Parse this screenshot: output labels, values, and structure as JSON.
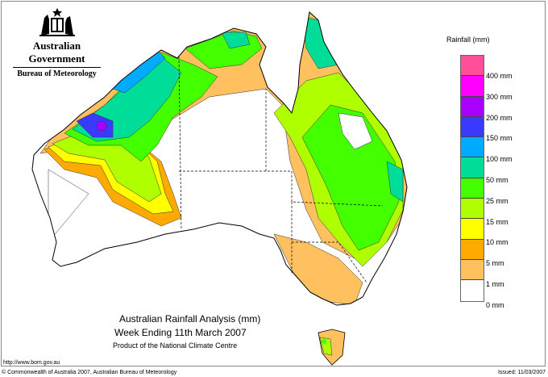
{
  "header": {
    "government": "Australian Government",
    "agency": "Bureau of Meteorology"
  },
  "map": {
    "title": "Australian Rainfall Analysis (mm)",
    "period": "Week Ending 11th March 2007",
    "product": "Product of the National Climate Centre"
  },
  "legend": {
    "title": "Rainfall (mm)",
    "colors": [
      "#ff4f9a",
      "#ff00ff",
      "#aa00ff",
      "#3a3aff",
      "#00aaff",
      "#00dd99",
      "#44ff00",
      "#b0ff00",
      "#ffff00",
      "#ffaa00",
      "#ffc060",
      "#ffffff"
    ],
    "labels": [
      "400 mm",
      "300 mm",
      "200 mm",
      "150 mm",
      "100 mm",
      "50 mm",
      "25 mm",
      "15 mm",
      "10 mm",
      "5 mm",
      "1 mm",
      "0 mm"
    ]
  },
  "footer": {
    "url": "http://www.bom.gov.au",
    "copyright": "© Commonwealth of Australia 2007, Australian Bureau of Meteorology",
    "issued": "Issued: 11/03/2007"
  }
}
